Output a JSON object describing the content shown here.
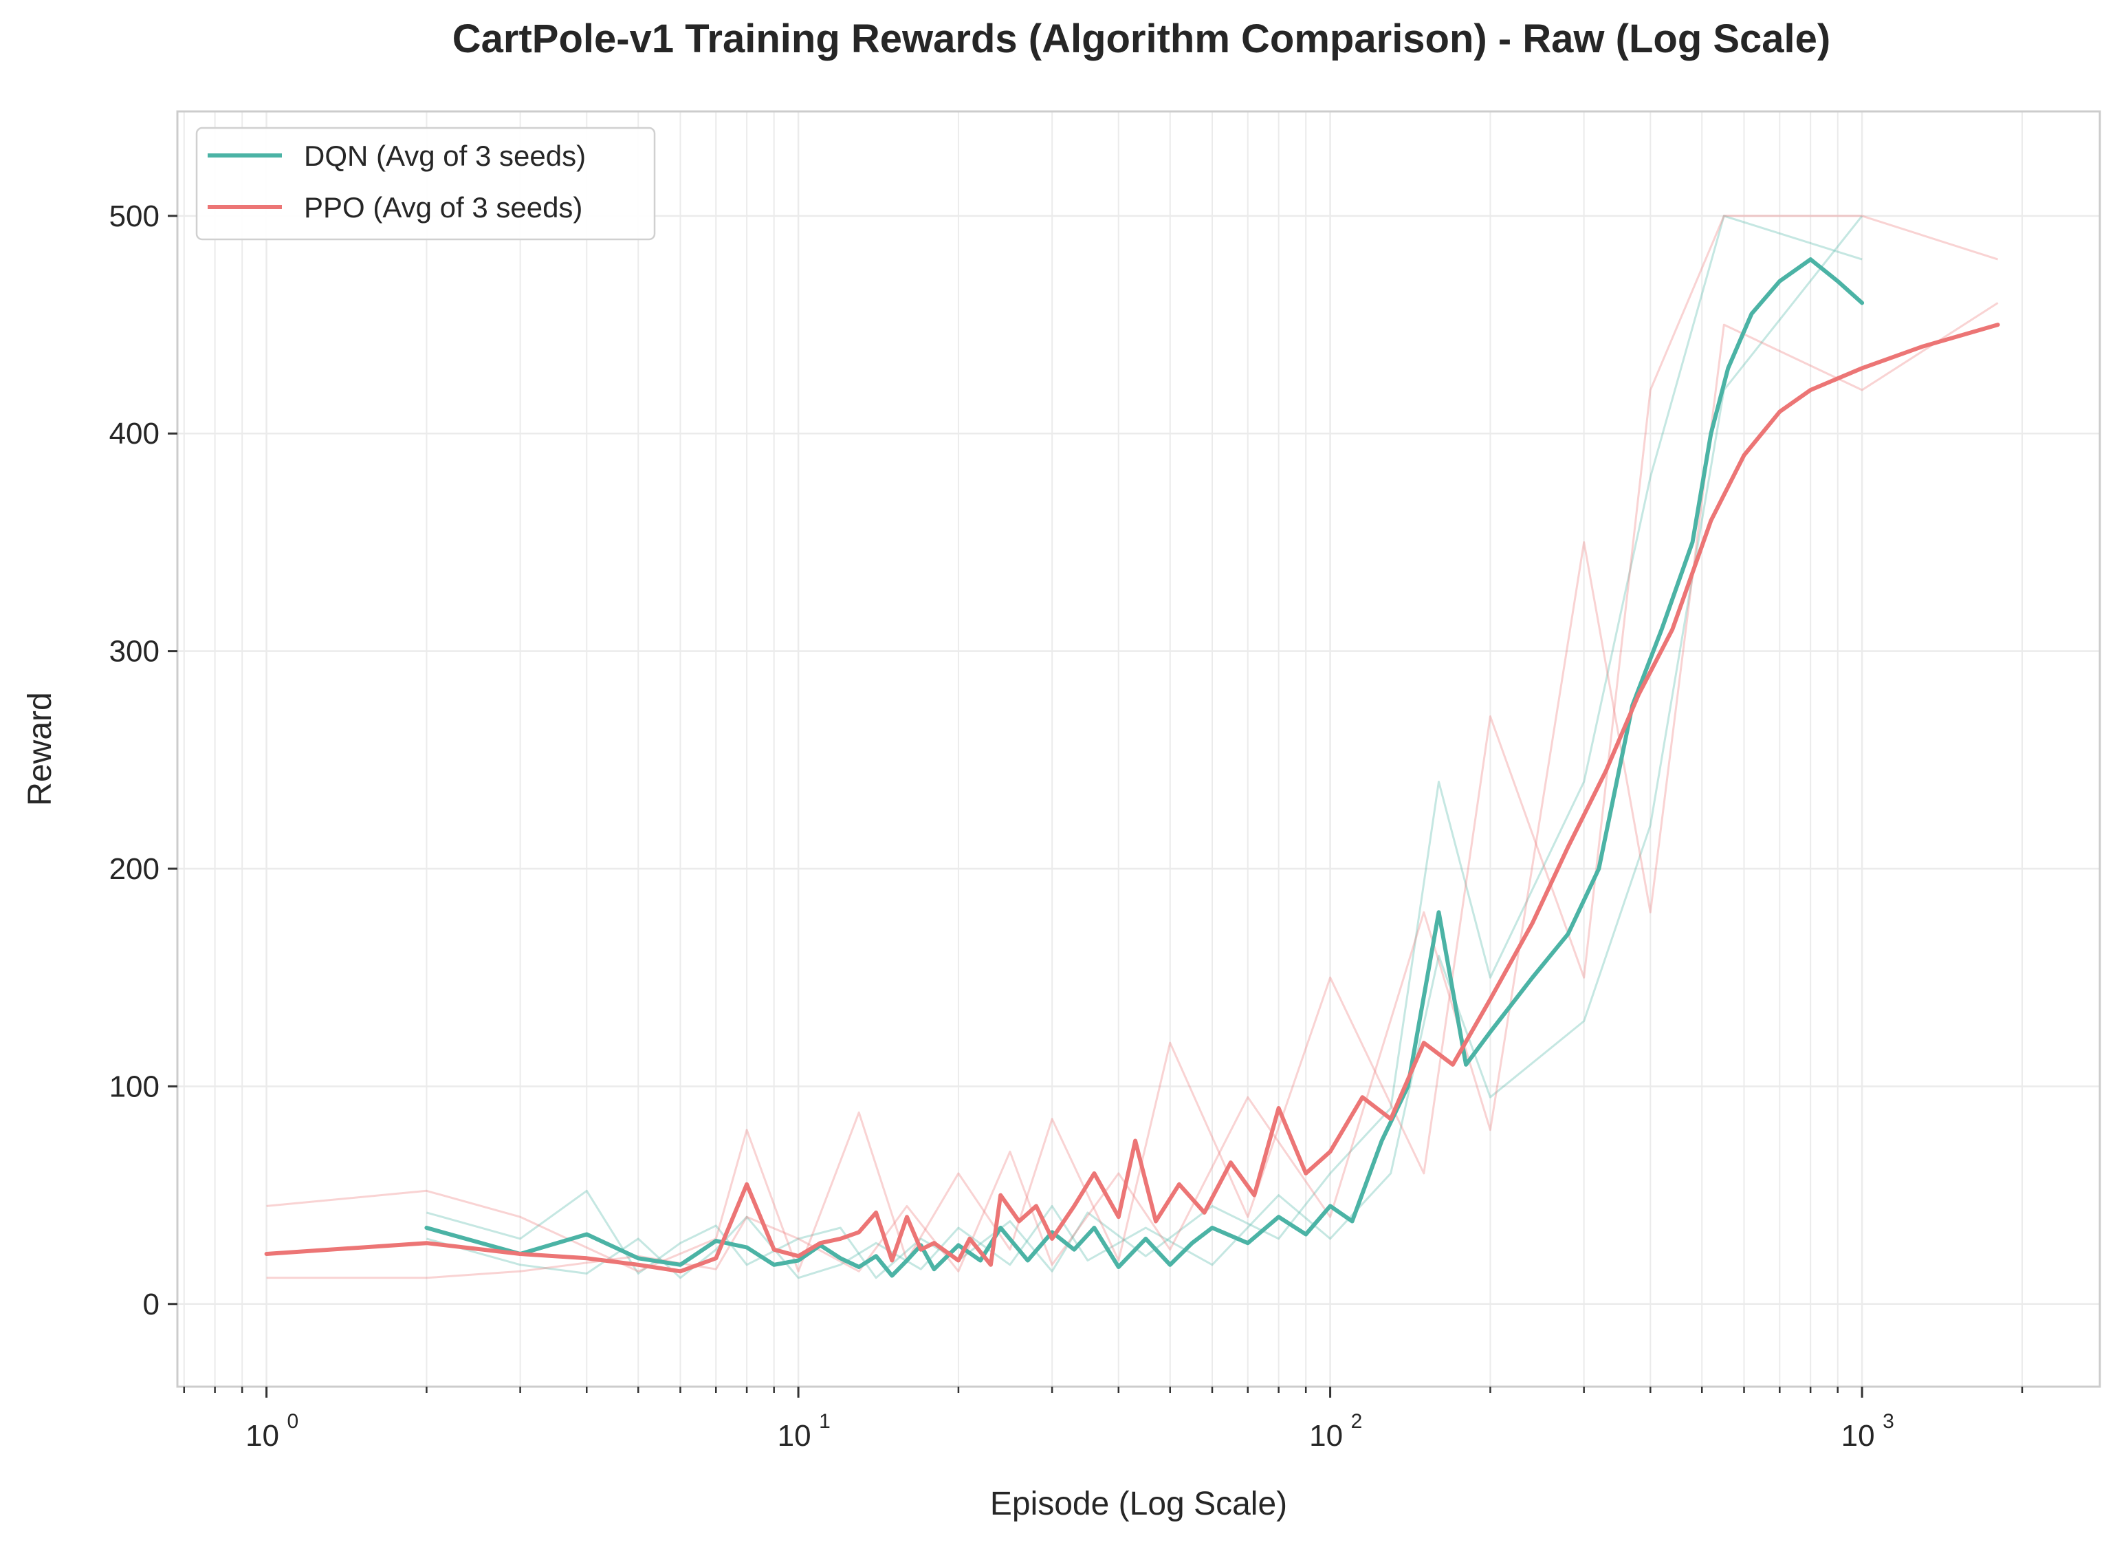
{
  "chart_data": {
    "type": "line",
    "title": "CartPole-v1 Training Rewards (Algorithm Comparison) - Raw (Log Scale)",
    "xlabel": "Episode (Log Scale)",
    "ylabel": "Reward",
    "x_scale": "log",
    "xlim": [
      0.68,
      2800
    ],
    "ylim": [
      -38,
      548
    ],
    "x_ticks": [
      {
        "value": 1,
        "base": "10",
        "exp": "0"
      },
      {
        "value": 10,
        "base": "10",
        "exp": "1"
      },
      {
        "value": 100,
        "base": "10",
        "exp": "2"
      },
      {
        "value": 1000,
        "base": "10",
        "exp": "3"
      }
    ],
    "y_ticks": [
      {
        "value": 0,
        "label": "0"
      },
      {
        "value": 100,
        "label": "100"
      },
      {
        "value": 200,
        "label": "200"
      },
      {
        "value": 300,
        "label": "300"
      },
      {
        "value": 400,
        "label": "400"
      },
      {
        "value": 500,
        "label": "500"
      }
    ],
    "grid": true,
    "legend_position": "top-left",
    "colors": {
      "dqn": "#4bb3a5",
      "ppo": "#ec7575"
    },
    "series": [
      {
        "name": "DQN (Avg of 3 seeds)",
        "color": "#4bb3a5",
        "points": [
          [
            2,
            35
          ],
          [
            3,
            23
          ],
          [
            4,
            32
          ],
          [
            5,
            21
          ],
          [
            6,
            18
          ],
          [
            7,
            29
          ],
          [
            8,
            26
          ],
          [
            9,
            18
          ],
          [
            10,
            20
          ],
          [
            11,
            27
          ],
          [
            12,
            21
          ],
          [
            13,
            17
          ],
          [
            14,
            22
          ],
          [
            15,
            13
          ],
          [
            16,
            20
          ],
          [
            17,
            27
          ],
          [
            18,
            16
          ],
          [
            20,
            27
          ],
          [
            22,
            20
          ],
          [
            24,
            35
          ],
          [
            27,
            20
          ],
          [
            30,
            33
          ],
          [
            33,
            25
          ],
          [
            36,
            35
          ],
          [
            40,
            17
          ],
          [
            45,
            30
          ],
          [
            50,
            18
          ],
          [
            55,
            28
          ],
          [
            60,
            35
          ],
          [
            70,
            28
          ],
          [
            80,
            40
          ],
          [
            90,
            32
          ],
          [
            100,
            45
          ],
          [
            110,
            38
          ],
          [
            125,
            75
          ],
          [
            140,
            100
          ],
          [
            160,
            180
          ],
          [
            180,
            110
          ],
          [
            200,
            125
          ],
          [
            240,
            150
          ],
          [
            280,
            170
          ],
          [
            320,
            200
          ],
          [
            370,
            275
          ],
          [
            420,
            310
          ],
          [
            480,
            350
          ],
          [
            520,
            400
          ],
          [
            560,
            430
          ],
          [
            620,
            455
          ],
          [
            700,
            470
          ],
          [
            800,
            480
          ],
          [
            900,
            470
          ],
          [
            1000,
            460
          ]
        ],
        "seeds": [
          [
            [
              2,
              42
            ],
            [
              3,
              30
            ],
            [
              4,
              52
            ],
            [
              5,
              14
            ],
            [
              6,
              28
            ],
            [
              7,
              36
            ],
            [
              8,
              18
            ],
            [
              10,
              30
            ],
            [
              12,
              35
            ],
            [
              14,
              12
            ],
            [
              17,
              30
            ],
            [
              20,
              20
            ],
            [
              25,
              38
            ],
            [
              30,
              15
            ],
            [
              35,
              42
            ],
            [
              45,
              22
            ],
            [
              60,
              45
            ],
            [
              80,
              30
            ],
            [
              100,
              60
            ],
            [
              130,
              90
            ],
            [
              160,
              240
            ],
            [
              200,
              150
            ],
            [
              300,
              240
            ],
            [
              400,
              380
            ],
            [
              550,
              500
            ],
            [
              1000,
              480
            ]
          ],
          [
            [
              2,
              30
            ],
            [
              3,
              18
            ],
            [
              4,
              14
            ],
            [
              5,
              30
            ],
            [
              6,
              12
            ],
            [
              7,
              25
            ],
            [
              8,
              40
            ],
            [
              10,
              12
            ],
            [
              12,
              18
            ],
            [
              14,
              28
            ],
            [
              17,
              16
            ],
            [
              20,
              35
            ],
            [
              25,
              18
            ],
            [
              30,
              45
            ],
            [
              35,
              20
            ],
            [
              45,
              35
            ],
            [
              60,
              18
            ],
            [
              80,
              50
            ],
            [
              100,
              30
            ],
            [
              130,
              60
            ],
            [
              160,
              160
            ],
            [
              200,
              95
            ],
            [
              300,
              130
            ],
            [
              400,
              220
            ],
            [
              550,
              420
            ],
            [
              1000,
              500
            ]
          ]
        ]
      },
      {
        "name": "PPO (Avg of 3 seeds)",
        "color": "#ec7575",
        "points": [
          [
            1,
            23
          ],
          [
            2,
            28
          ],
          [
            3,
            23
          ],
          [
            4,
            21
          ],
          [
            5,
            18
          ],
          [
            6,
            15
          ],
          [
            7,
            21
          ],
          [
            8,
            55
          ],
          [
            9,
            25
          ],
          [
            10,
            22
          ],
          [
            11,
            28
          ],
          [
            12,
            30
          ],
          [
            13,
            33
          ],
          [
            14,
            42
          ],
          [
            15,
            20
          ],
          [
            16,
            40
          ],
          [
            17,
            25
          ],
          [
            18,
            28
          ],
          [
            20,
            20
          ],
          [
            21,
            30
          ],
          [
            23,
            18
          ],
          [
            24,
            50
          ],
          [
            26,
            38
          ],
          [
            28,
            45
          ],
          [
            30,
            30
          ],
          [
            33,
            45
          ],
          [
            36,
            60
          ],
          [
            40,
            40
          ],
          [
            43,
            75
          ],
          [
            47,
            38
          ],
          [
            52,
            55
          ],
          [
            58,
            42
          ],
          [
            65,
            65
          ],
          [
            72,
            50
          ],
          [
            80,
            90
          ],
          [
            90,
            60
          ],
          [
            100,
            70
          ],
          [
            115,
            95
          ],
          [
            130,
            85
          ],
          [
            150,
            120
          ],
          [
            170,
            110
          ],
          [
            200,
            140
          ],
          [
            240,
            175
          ],
          [
            280,
            210
          ],
          [
            330,
            245
          ],
          [
            380,
            280
          ],
          [
            440,
            310
          ],
          [
            520,
            360
          ],
          [
            600,
            390
          ],
          [
            700,
            410
          ],
          [
            800,
            420
          ],
          [
            1000,
            430
          ],
          [
            1300,
            440
          ],
          [
            1800,
            450
          ]
        ],
        "seeds": [
          [
            [
              1,
              45
            ],
            [
              2,
              52
            ],
            [
              3,
              40
            ],
            [
              5,
              15
            ],
            [
              7,
              30
            ],
            [
              8,
              80
            ],
            [
              10,
              15
            ],
            [
              13,
              88
            ],
            [
              16,
              20
            ],
            [
              20,
              60
            ],
            [
              25,
              25
            ],
            [
              30,
              85
            ],
            [
              40,
              20
            ],
            [
              50,
              120
            ],
            [
              70,
              40
            ],
            [
              100,
              150
            ],
            [
              150,
              60
            ],
            [
              200,
              270
            ],
            [
              300,
              150
            ],
            [
              400,
              420
            ],
            [
              550,
              500
            ],
            [
              1000,
              500
            ],
            [
              1800,
              480
            ]
          ],
          [
            [
              1,
              12
            ],
            [
              2,
              12
            ],
            [
              3,
              15
            ],
            [
              5,
              22
            ],
            [
              7,
              16
            ],
            [
              8,
              40
            ],
            [
              10,
              30
            ],
            [
              13,
              15
            ],
            [
              16,
              45
            ],
            [
              20,
              15
            ],
            [
              25,
              70
            ],
            [
              30,
              18
            ],
            [
              40,
              60
            ],
            [
              50,
              25
            ],
            [
              70,
              95
            ],
            [
              100,
              40
            ],
            [
              150,
              180
            ],
            [
              200,
              80
            ],
            [
              300,
              350
            ],
            [
              400,
              180
            ],
            [
              550,
              450
            ],
            [
              1000,
              420
            ],
            [
              1800,
              460
            ]
          ]
        ]
      }
    ]
  }
}
